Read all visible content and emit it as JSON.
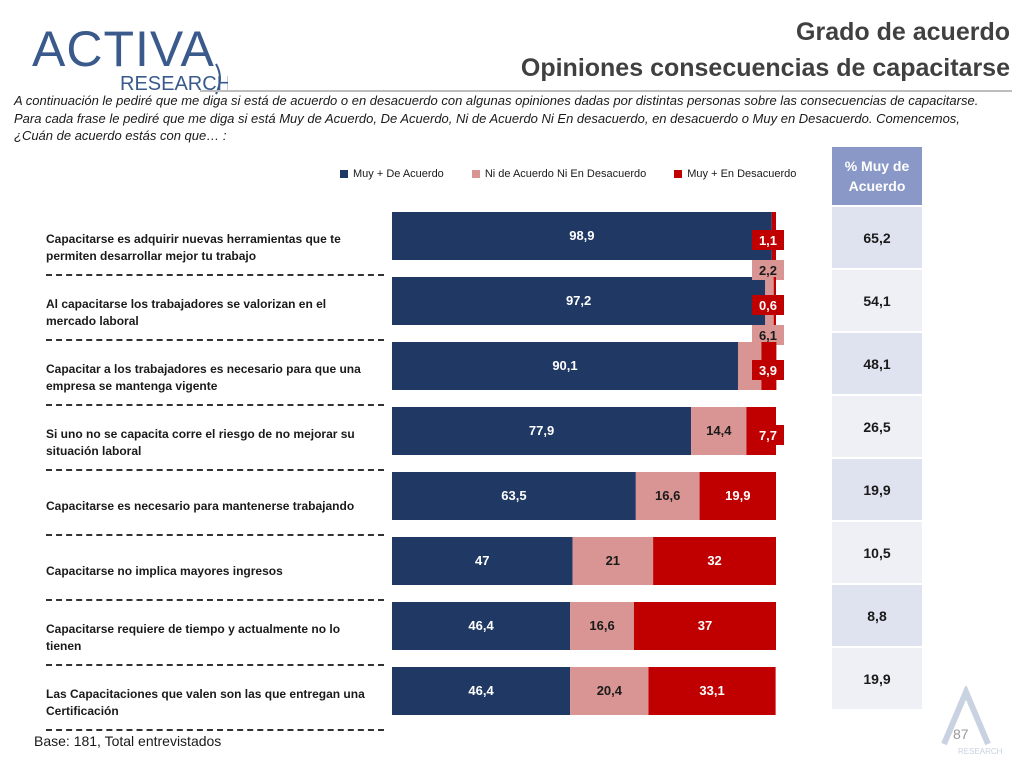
{
  "logo": {
    "brand": "ACTIVA",
    "sub": "RESEARCH"
  },
  "title": {
    "line1": "Grado de acuerdo",
    "line2": "Opiniones consecuencias de capacitarse"
  },
  "intro_text": "A continuación le pediré que me diga si está de acuerdo o en desacuerdo con algunas opiniones dadas por distintas personas sobre las consecuencias de capacitarse. Para cada frase le pediré que me diga si está Muy de Acuerdo, De Acuerdo, Ni de Acuerdo Ni En desacuerdo, en desacuerdo o Muy en Desacuerdo. Comencemos, ¿Cuán de acuerdo estás con que… :",
  "colors": {
    "agree": "#1f3864",
    "neutral": "#d99594",
    "disagree": "#c00000",
    "title": "#404040"
  },
  "chart_data": {
    "type": "bar",
    "orientation": "horizontal",
    "stacked": true,
    "categories": [
      "Capacitarse es adquirir nuevas herramientas que te permiten desarrollar mejor tu trabajo",
      "Al capacitarse los trabajadores se valorizan en el mercado laboral",
      "Capacitar a los trabajadores es necesario para que una empresa se mantenga vigente",
      "Si uno no se capacita corre el riesgo de no mejorar su situación laboral",
      "Capacitarse es necesario para mantenerse trabajando",
      "Capacitarse no implica mayores ingresos",
      "Capacitarse requiere de tiempo y actualmente no lo tienen",
      "Las Capacitaciones que valen son las que entregan una Certificación"
    ],
    "series": [
      {
        "name": "Muy + De Acuerdo",
        "color": "#1f3864",
        "labels": [
          "98,9",
          "97,2",
          "90,1",
          "77,9",
          "63,5",
          "47",
          "46,4",
          "46,4"
        ],
        "values": [
          98.9,
          97.2,
          90.1,
          77.9,
          63.5,
          47,
          46.4,
          46.4
        ]
      },
      {
        "name": "Ni de Acuerdo Ni En Desacuerdo",
        "color": "#d99594",
        "labels": [
          "",
          "2,2",
          "6,1",
          "14,4",
          "16,6",
          "21",
          "16,6",
          "20,4"
        ],
        "values": [
          0,
          2.2,
          6.1,
          14.4,
          16.6,
          21,
          16.6,
          20.4
        ]
      },
      {
        "name": "Muy + En Desacuerdo",
        "color": "#c00000",
        "labels": [
          "1,1",
          "0,6",
          "3,9",
          "7,7",
          "19,9",
          "32",
          "37",
          "33,1"
        ],
        "values": [
          1.1,
          0.6,
          3.9,
          7.7,
          19.9,
          32,
          37,
          33.1
        ]
      }
    ],
    "xlim": [
      0,
      100
    ],
    "legend": "top"
  },
  "pct_table": {
    "header": "% Muy de Acuerdo",
    "values": [
      "65,2",
      "54,1",
      "48,1",
      "26,5",
      "19,9",
      "10,5",
      "8,8",
      "19,9"
    ]
  },
  "base_note": "Base: 181, Total entrevistados",
  "page_number": "87"
}
